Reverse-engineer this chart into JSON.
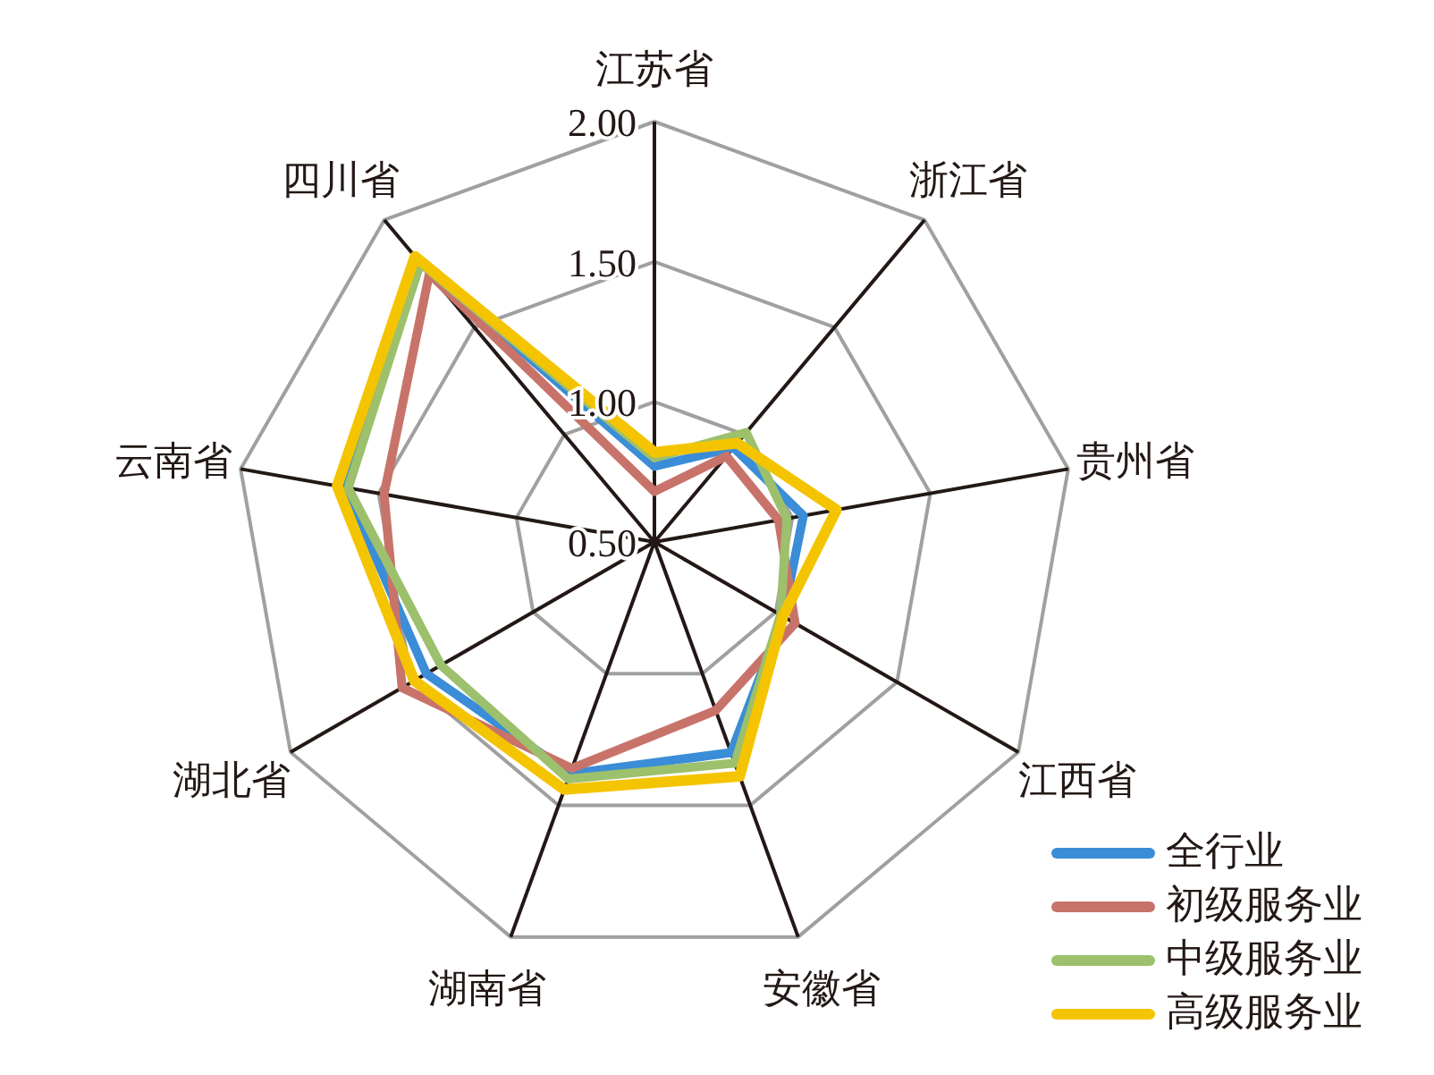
{
  "chart_data": {
    "type": "radar",
    "categories": [
      "江苏省",
      "浙江省",
      "贵州省",
      "江西省",
      "安徽省",
      "湖南省",
      "湖北省",
      "云南省",
      "四川省"
    ],
    "ylim": [
      0.5,
      2
    ],
    "yticks": [
      {
        "value": 0.5,
        "label": "0.50"
      },
      {
        "value": 1,
        "label": "1.00"
      },
      {
        "value": 1.5,
        "label": "1.50"
      },
      {
        "value": 2,
        "label": "2.00"
      }
    ],
    "grid": true,
    "legend": "bottom right",
    "marker": "none",
    "series": [
      {
        "name": "全行业",
        "color": "#3a8dd6",
        "values": [
          0.77,
          0.94,
          1.04,
          1.03,
          1.3,
          1.38,
          1.44,
          1.62,
          1.8
        ]
      },
      {
        "name": "初级服务业",
        "color": "#c8736a",
        "values": [
          0.68,
          0.9,
          0.95,
          1.08,
          1.14,
          1.36,
          1.54,
          1.48,
          1.75
        ]
      },
      {
        "name": "中级服务业",
        "color": "#9cc06c",
        "values": [
          0.8,
          1.01,
          0.98,
          1.02,
          1.34,
          1.4,
          1.38,
          1.61,
          1.8
        ]
      },
      {
        "name": "高级服务业",
        "color": "#f5c400",
        "values": [
          0.82,
          0.96,
          1.16,
          1.03,
          1.39,
          1.44,
          1.49,
          1.65,
          1.83
        ]
      }
    ]
  }
}
